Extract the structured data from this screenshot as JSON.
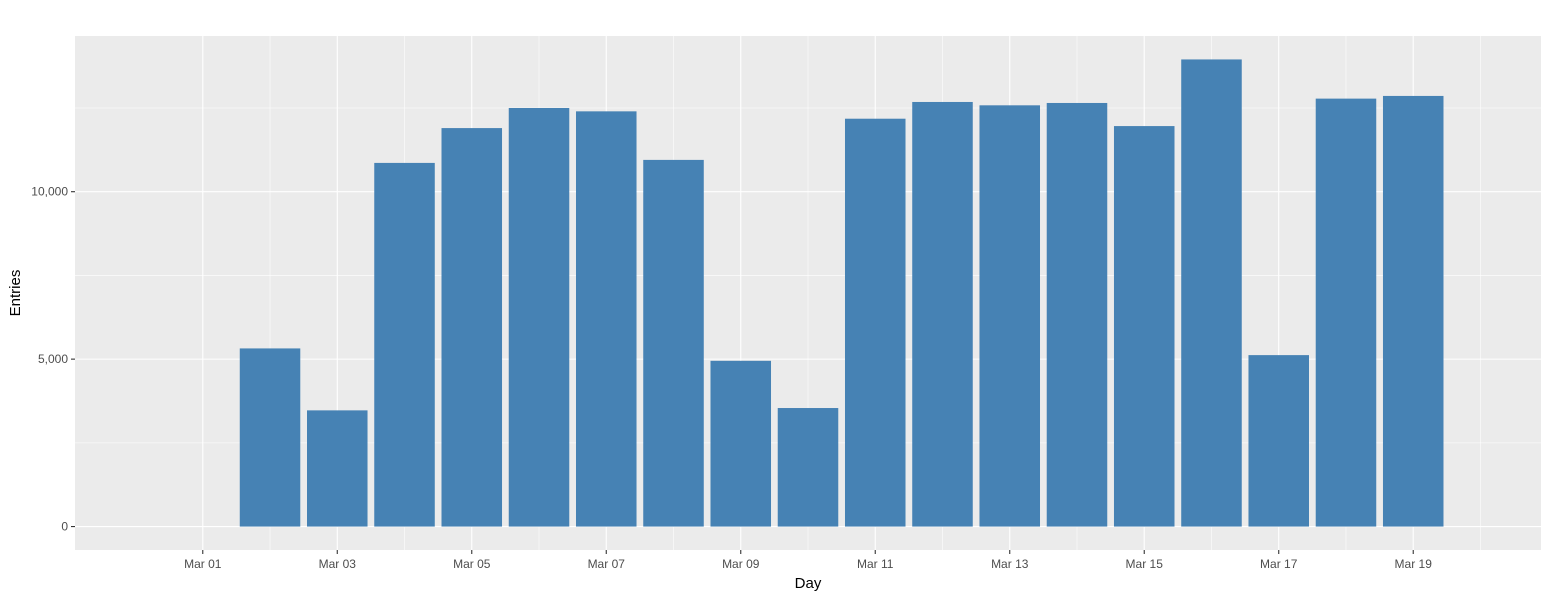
{
  "chart_data": {
    "type": "bar",
    "xlabel": "Day",
    "ylabel": "Entries",
    "categories": [
      "Mar 02",
      "Mar 03",
      "Mar 04",
      "Mar 05",
      "Mar 06",
      "Mar 07",
      "Mar 08",
      "Mar 09",
      "Mar 10",
      "Mar 11",
      "Mar 12",
      "Mar 13",
      "Mar 14",
      "Mar 15",
      "Mar 16",
      "Mar 17",
      "Mar 18",
      "Mar 19"
    ],
    "values": [
      5320,
      3470,
      10860,
      11900,
      12500,
      12400,
      10950,
      4950,
      3540,
      12180,
      12680,
      12580,
      12650,
      11960,
      13950,
      5120,
      12780,
      12860
    ],
    "x_ticks": [
      "Mar 01",
      "Mar 03",
      "Mar 05",
      "Mar 07",
      "Mar 09",
      "Mar 11",
      "Mar 13",
      "Mar 15",
      "Mar 17",
      "Mar 19"
    ],
    "y_ticks": [
      0,
      5000,
      10000
    ],
    "y_tick_labels": [
      "0",
      "5,000",
      "10,000"
    ],
    "xlim": [
      "Feb 28",
      "Mar 20"
    ],
    "ylim": [
      -700,
      14650
    ],
    "grid": true,
    "colors": {
      "bar": "#4682b4",
      "panel": "#ebebeb",
      "grid": "#ffffff"
    }
  }
}
